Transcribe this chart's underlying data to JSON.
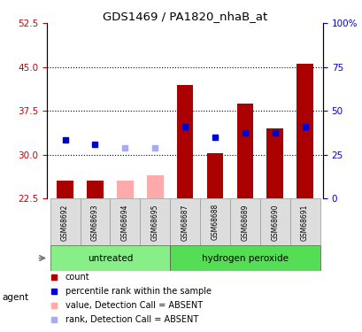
{
  "title": "GDS1469 / PA1820_nhaB_at",
  "samples": [
    "GSM68692",
    "GSM68693",
    "GSM68694",
    "GSM68695",
    "GSM68687",
    "GSM68688",
    "GSM68689",
    "GSM68690",
    "GSM68691"
  ],
  "groups": {
    "untreated": [
      0,
      1,
      2,
      3
    ],
    "hydrogen peroxide": [
      4,
      5,
      6,
      7,
      8
    ]
  },
  "ylim_left": [
    22.5,
    52.5
  ],
  "ylim_right": [
    0,
    100
  ],
  "yticks_left": [
    22.5,
    30,
    37.5,
    45,
    52.5
  ],
  "yticks_right": [
    0,
    25,
    50,
    75,
    100
  ],
  "bar_baseline": 22.5,
  "count_values": [
    25.6,
    25.6,
    25.6,
    26.5,
    42.0,
    30.3,
    38.8,
    34.5,
    45.5
  ],
  "rank_values": [
    32.5,
    31.8,
    31.2,
    31.2,
    34.8,
    33.0,
    33.8,
    33.8,
    34.8
  ],
  "absent_flags": [
    false,
    false,
    true,
    true,
    false,
    false,
    false,
    false,
    false
  ],
  "bar_color_present": "#aa0000",
  "bar_color_absent": "#ffaaaa",
  "rank_color_present": "#0000cc",
  "rank_color_absent": "#aaaaee",
  "group_color_untreated": "#88ee88",
  "group_color_peroxide": "#55dd55",
  "bar_width": 0.55,
  "dotted_yticks": [
    30,
    37.5,
    45
  ],
  "background_color": "#ffffff",
  "tick_label_color_left": "#cc0000",
  "tick_label_color_right": "#0000cc",
  "legend_items": [
    [
      "#aa0000",
      "count"
    ],
    [
      "#0000cc",
      "percentile rank within the sample"
    ],
    [
      "#ffaaaa",
      "value, Detection Call = ABSENT"
    ],
    [
      "#aaaaee",
      "rank, Detection Call = ABSENT"
    ]
  ]
}
